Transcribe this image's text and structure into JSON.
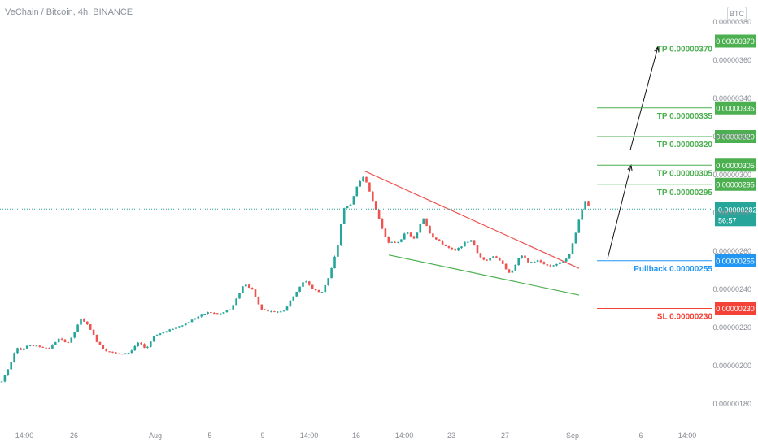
{
  "header": {
    "symbol_title": "VeChain / Bitcoin, 4h, BINANCE",
    "currency_badge": "BTC"
  },
  "colors": {
    "up": "#26a69a",
    "down": "#ef5350",
    "green_level": "#4caf50",
    "blue_level": "#2196f3",
    "red_level": "#f44336",
    "axis_text": "#888c94"
  },
  "chart_data": {
    "type": "candlestick",
    "symbol": "VeChain / Bitcoin",
    "interval": "4h",
    "exchange": "BINANCE",
    "x_ticks": [
      "14:00",
      "26",
      "Aug",
      "5",
      "9",
      "14:00",
      "16",
      "14:00",
      "23",
      "27",
      "Sep",
      "6",
      "14:00"
    ],
    "y_ticks": [
      "0.00000380",
      "0.00000360",
      "0.00000340",
      "0.00000320",
      "0.00000300",
      "0.00000280",
      "0.00000260",
      "0.00000240",
      "0.00000220",
      "0.00000200",
      "0.00000180"
    ],
    "ylim": [
      1.72e-06,
      3.85e-06
    ],
    "current_price": {
      "value": "0.00000282",
      "countdown": "56:57"
    },
    "levels": [
      {
        "label": "TP 0.00000370",
        "price": 3.7e-06,
        "tag": "0.00000370",
        "kind": "tp"
      },
      {
        "label": "TP 0.00000335",
        "price": 3.35e-06,
        "tag": "0.00000335",
        "kind": "tp"
      },
      {
        "label": "TP 0.00000320",
        "price": 3.2e-06,
        "tag": "0.00000320",
        "kind": "tp"
      },
      {
        "label": "TP 0.00000305",
        "price": 3.05e-06,
        "tag": "0.00000305",
        "kind": "tp"
      },
      {
        "label": "TP 0.00000295",
        "price": 2.95e-06,
        "tag": "0.00000295",
        "kind": "tp"
      },
      {
        "label": "Pullback 0.00000255",
        "price": 2.55e-06,
        "tag": "0.00000255",
        "kind": "pullback"
      },
      {
        "label": "SL 0.00000230",
        "price": 2.3e-06,
        "tag": "0.00000230",
        "kind": "sl"
      }
    ],
    "price_path": [
      [
        0,
        1.9e-06
      ],
      [
        12,
        2e-06
      ],
      [
        20,
        2.1e-06
      ],
      [
        26,
        2.08e-06
      ],
      [
        36,
        2.11e-06
      ],
      [
        48,
        2.1e-06
      ],
      [
        60,
        2.09e-06
      ],
      [
        72,
        2.14e-06
      ],
      [
        85,
        2.12e-06
      ],
      [
        100,
        2.25e-06
      ],
      [
        110,
        2.2e-06
      ],
      [
        120,
        2.12e-06
      ],
      [
        130,
        2.08e-06
      ],
      [
        145,
        2.06e-06
      ],
      [
        160,
        2.07e-06
      ],
      [
        170,
        2.12e-06
      ],
      [
        180,
        2.09e-06
      ],
      [
        190,
        2.16e-06
      ],
      [
        205,
        2.18e-06
      ],
      [
        215,
        2.2e-06
      ],
      [
        228,
        2.22e-06
      ],
      [
        240,
        2.25e-06
      ],
      [
        255,
        2.28e-06
      ],
      [
        270,
        2.27e-06
      ],
      [
        285,
        2.3e-06
      ],
      [
        300,
        2.43e-06
      ],
      [
        310,
        2.4e-06
      ],
      [
        320,
        2.3e-06
      ],
      [
        335,
        2.28e-06
      ],
      [
        350,
        2.29e-06
      ],
      [
        360,
        2.36e-06
      ],
      [
        375,
        2.45e-06
      ],
      [
        385,
        2.4e-06
      ],
      [
        395,
        2.38e-06
      ],
      [
        405,
        2.47e-06
      ],
      [
        415,
        2.62e-06
      ],
      [
        422,
        2.82e-06
      ],
      [
        432,
        2.85e-06
      ],
      [
        440,
        2.95e-06
      ],
      [
        448,
        3e-06
      ],
      [
        455,
        2.9e-06
      ],
      [
        462,
        2.82e-06
      ],
      [
        470,
        2.72e-06
      ],
      [
        478,
        2.64e-06
      ],
      [
        490,
        2.65e-06
      ],
      [
        500,
        2.7e-06
      ],
      [
        510,
        2.66e-06
      ],
      [
        520,
        2.78e-06
      ],
      [
        530,
        2.68e-06
      ],
      [
        540,
        2.65e-06
      ],
      [
        550,
        2.62e-06
      ],
      [
        560,
        2.6e-06
      ],
      [
        570,
        2.64e-06
      ],
      [
        580,
        2.66e-06
      ],
      [
        588,
        2.58e-06
      ],
      [
        598,
        2.55e-06
      ],
      [
        608,
        2.58e-06
      ],
      [
        618,
        2.53e-06
      ],
      [
        628,
        2.48e-06
      ],
      [
        640,
        2.58e-06
      ],
      [
        650,
        2.54e-06
      ],
      [
        662,
        2.55e-06
      ],
      [
        675,
        2.52e-06
      ],
      [
        690,
        2.54e-06
      ],
      [
        700,
        2.58e-06
      ],
      [
        708,
        2.7e-06
      ],
      [
        714,
        2.8e-06
      ],
      [
        720,
        2.87e-06
      ],
      [
        725,
        2.82e-06
      ]
    ],
    "patterns": [
      {
        "name": "upper-trendline",
        "color": "red",
        "from": [
          448,
          3.02e-06
        ],
        "to": [
          712,
          2.51e-06
        ]
      },
      {
        "name": "lower-trendline",
        "color": "green",
        "from": [
          478,
          2.58e-06
        ],
        "to": [
          712,
          2.37e-06
        ]
      }
    ],
    "arrows": [
      {
        "from": [
          747,
          2.56e-06
        ],
        "to": [
          776,
          3.05e-06
        ]
      },
      {
        "from": [
          775,
          3.13e-06
        ],
        "to": [
          809,
          3.67e-06
        ]
      }
    ]
  }
}
